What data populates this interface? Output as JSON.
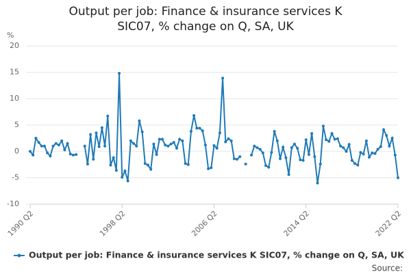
{
  "chart_data": {
    "type": "line",
    "title": "Output per job: Finance & insurance services K SIC07, % change on Q, SA, UK",
    "y_label": "%",
    "source": "Source:",
    "categories": [
      "1990 Q2",
      null,
      null,
      null,
      null,
      null,
      null,
      null,
      null,
      null,
      null,
      null,
      null,
      null,
      null,
      null,
      null,
      null,
      null,
      null,
      null,
      null,
      null,
      null,
      null,
      null,
      null,
      null,
      null,
      null,
      null,
      null,
      "1998 Q2",
      null,
      null,
      null,
      null,
      null,
      null,
      null,
      null,
      null,
      null,
      null,
      null,
      null,
      null,
      null,
      null,
      null,
      null,
      null,
      null,
      null,
      null,
      null,
      null,
      null,
      null,
      null,
      null,
      null,
      null,
      null,
      "2006 Q2",
      null,
      null,
      null,
      null,
      null,
      null,
      null,
      null,
      null,
      null,
      null,
      null,
      null,
      null,
      null,
      null,
      null,
      null,
      null,
      null,
      null,
      null,
      null,
      null,
      null,
      null,
      null,
      null,
      null,
      null,
      null,
      "2014 Q2",
      null,
      null,
      null,
      null,
      null,
      null,
      null,
      null,
      null,
      null,
      null,
      null,
      null,
      null,
      null,
      null,
      null,
      null,
      null,
      null,
      null,
      null,
      null,
      null,
      null,
      null,
      null,
      null,
      null,
      null,
      null,
      "2022 Q2"
    ],
    "series": [
      {
        "name": "Output per job: Finance & insurance services K SIC07, % change on Q, SA, UK",
        "color": "#1f7ab8",
        "values": [
          0,
          -0.7,
          2.5,
          1.7,
          1.0,
          1.0,
          -0.3,
          -0.9,
          1.0,
          1.5,
          1.2,
          2.0,
          0.3,
          1.5,
          -0.5,
          -0.7,
          -0.6,
          null,
          null,
          1.0,
          -2.4,
          3.2,
          -1.5,
          3.5,
          0.9,
          4.5,
          1.0,
          6.7,
          -2.6,
          -1.2,
          -3.6,
          14.8,
          -4.9,
          -3.7,
          -5.6,
          2.0,
          1.5,
          1.0,
          5.8,
          3.7,
          -2.3,
          -2.6,
          -3.4,
          1.4,
          -0.6,
          2.3,
          2.3,
          1.2,
          1.0,
          1.4,
          1.7,
          0.6,
          2.3,
          2.0,
          -2.3,
          -2.5,
          3.8,
          6.8,
          4.4,
          4.4,
          3.9,
          1.2,
          -3.3,
          -3.1,
          1.1,
          0.6,
          3.5,
          13.9,
          1.8,
          2.4,
          2.0,
          -1.4,
          -1.5,
          -1.0,
          null,
          -2.4,
          null,
          -0.7,
          1.0,
          0.7,
          0.4,
          -0.3,
          -2.7,
          -3.0,
          -0.2,
          3.8,
          2.0,
          -1.4,
          0.8,
          -1.2,
          -4.4,
          0.7,
          1.4,
          0.6,
          -1.6,
          -1.7,
          2.2,
          -0.6,
          3.4,
          -1.0,
          -6.0,
          -2.4,
          4.8,
          2.2,
          1.9,
          3.4,
          2.3,
          2.4,
          1.0,
          0.7,
          0.0,
          1.3,
          -1.7,
          -2.3,
          -2.6,
          -0.2,
          -0.5,
          2.0,
          -1.1,
          -0.3,
          -0.4,
          0.4,
          0.9,
          4.1,
          3.0,
          1.0,
          2.5,
          -0.7,
          -5.0
        ]
      }
    ],
    "ylim": [
      -10,
      20
    ],
    "yticks": [
      -10,
      -5,
      0,
      5,
      10,
      15,
      20
    ],
    "grid": true,
    "legend": "bottom"
  }
}
